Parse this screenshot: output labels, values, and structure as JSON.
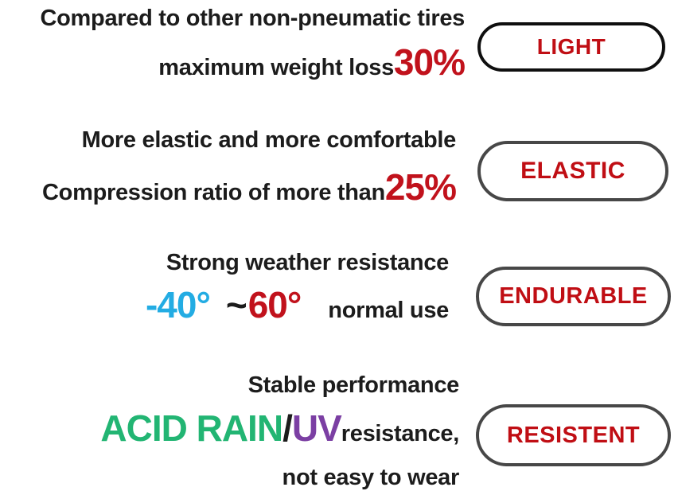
{
  "colors": {
    "text": "#1c1c1c",
    "accent_red": "#c1121c",
    "accent_cyan": "#23ace3",
    "accent_green": "#22b573",
    "accent_purple": "#7b3fa3",
    "badge_text_red": "#c00e14",
    "badge_border_black": "#0f0f0f",
    "badge_border_gray": "#474747",
    "background": "#ffffff"
  },
  "sections": [
    {
      "id": "light",
      "line1": "Compared to other non-pneumatic tires",
      "line2_text": "maximum weight loss",
      "line2_value": "30%",
      "badge": "LIGHT"
    },
    {
      "id": "elastic",
      "line1": "More elastic and more comfortable",
      "line2_text": "Compression ratio of more than",
      "line2_value": "25%",
      "badge": "ELASTIC"
    },
    {
      "id": "endurable",
      "line1": "Strong weather resistance",
      "temp_low": "-40°",
      "tilde": "~",
      "temp_high": "60°",
      "note": "normal use",
      "badge": "ENDURABLE"
    },
    {
      "id": "resistent",
      "line1": "Stable performance",
      "highlight_green": "ACID RAIN",
      "slash": "/",
      "highlight_purple": "UV",
      "suffix": "resistance,",
      "line3": "not easy to wear",
      "badge": "RESISTENT"
    }
  ]
}
